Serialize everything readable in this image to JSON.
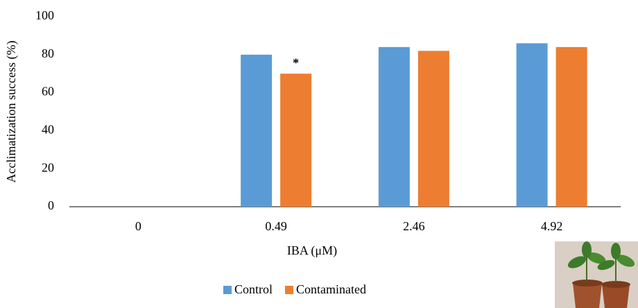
{
  "chart_data": {
    "type": "bar",
    "categories": [
      "0",
      "0.49",
      "2.46",
      "4.92"
    ],
    "series": [
      {
        "name": "Control",
        "color": "#5b9bd5",
        "values": [
          0,
          80,
          84,
          86
        ]
      },
      {
        "name": "Contaminated",
        "color": "#ed7d31",
        "values": [
          0,
          70,
          82,
          84
        ]
      }
    ],
    "ylim": [
      0,
      100
    ],
    "yticks": [
      0,
      20,
      40,
      60,
      80,
      100
    ],
    "x_label": "IBA (μM)",
    "y_label": "Acclimatization success (%)",
    "annotations": [
      {
        "text": "*",
        "category": "0.49",
        "series": "Contaminated"
      }
    ],
    "legend": "bottom",
    "grid": false
  }
}
